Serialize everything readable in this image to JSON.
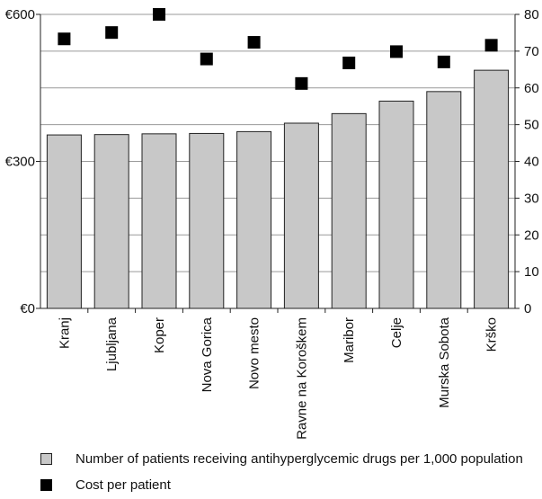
{
  "chart_data": {
    "type": "bar",
    "categories": [
      "Kranj",
      "Ljubljana",
      "Koper",
      "Nova Gorica",
      "Novo mesto",
      "Ravne na Koroškem",
      "Maribor",
      "Celje",
      "Murska Sobota",
      "Krško"
    ],
    "series": [
      {
        "name": "Cost per patient",
        "kind": "scatter",
        "axis": "left",
        "values": [
          550,
          563,
          600,
          509,
          543,
          459,
          501,
          524,
          503,
          537
        ],
        "color": "#000000"
      },
      {
        "name": "Number of patients receiving antihyperglycemic drugs per 1,000 population",
        "kind": "bar",
        "axis": "right",
        "values": [
          47.2,
          47.3,
          47.5,
          47.6,
          48.1,
          50.4,
          53.0,
          56.4,
          59.0,
          64.8
        ],
        "color": "#c8c8c8"
      }
    ],
    "y_left": {
      "ticks": [
        "€0",
        "€300",
        "€600"
      ],
      "ylim": [
        0,
        600
      ]
    },
    "y_right": {
      "ticks": [
        "0",
        "10",
        "20",
        "30",
        "40",
        "50",
        "60",
        "70",
        "80"
      ],
      "ylim": [
        0,
        80
      ]
    },
    "grid": true,
    "legend_position": "bottom",
    "title": "",
    "xlabel": "",
    "ylabel": ""
  },
  "legend": {
    "bar_label": "Number of patients receiving antihyperglycemic drugs per 1,000 population",
    "marker_label": "Cost per patient"
  },
  "colors": {
    "bar_fill": "#c8c8c8",
    "bar_stroke": "#222222",
    "marker": "#000000",
    "grid": "#9a9a9a"
  }
}
